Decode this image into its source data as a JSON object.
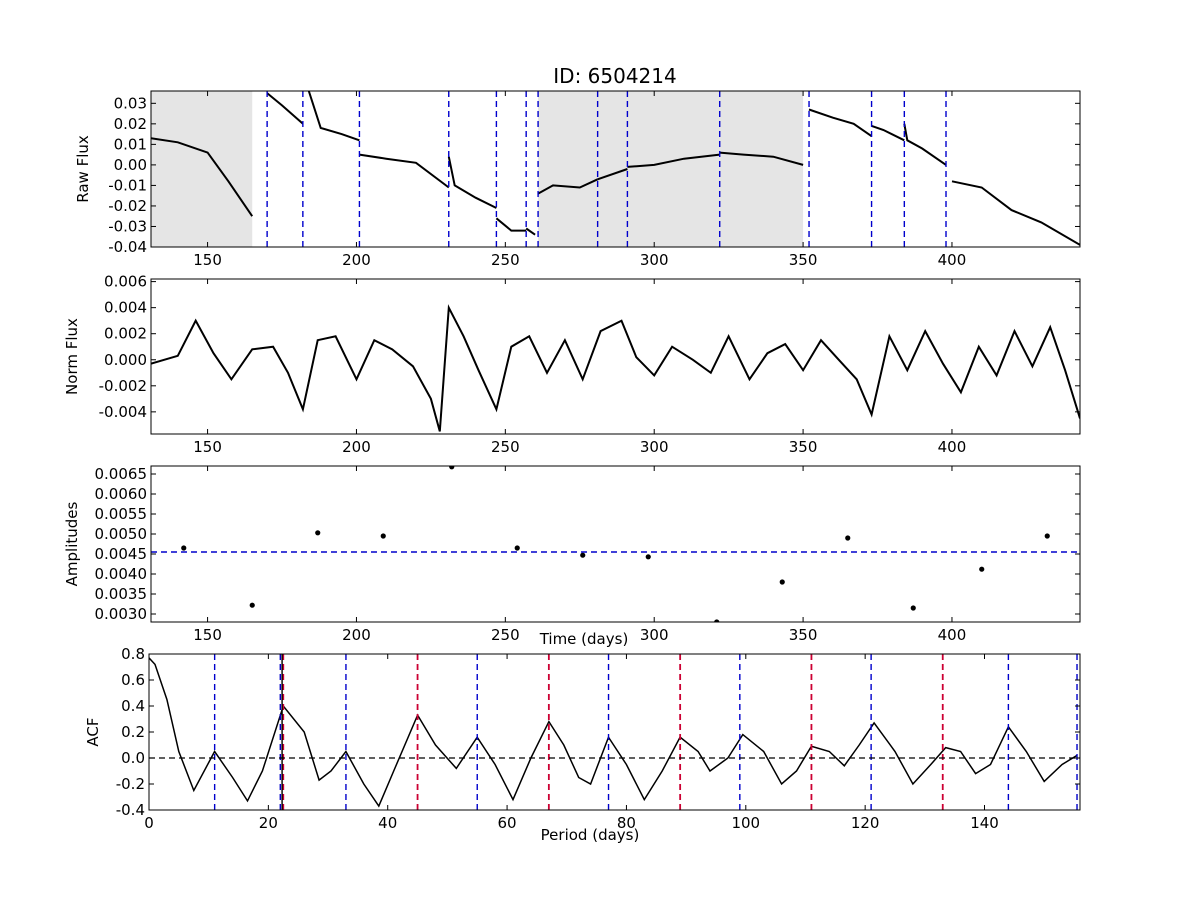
{
  "figure": {
    "title": "ID: 6504214"
  },
  "chart_data": [
    {
      "panel": "raw_flux",
      "type": "line",
      "ylabel": "Raw Flux",
      "xlim": [
        131,
        443
      ],
      "ylim": [
        -0.04,
        0.036
      ],
      "xticks": [
        150,
        200,
        250,
        300,
        350,
        400
      ],
      "xtick_labels": [
        "150",
        "200",
        "250",
        "300",
        "350",
        "400"
      ],
      "yticks": [
        0.03,
        0.02,
        0.01,
        0.0,
        -0.01,
        -0.02,
        -0.03,
        -0.04
      ],
      "ytick_labels": [
        "0.03",
        "0.02",
        "0.01",
        "0.00",
        "-0.01",
        "-0.02",
        "-0.03",
        "-0.04"
      ],
      "shaded_x_ranges": [
        [
          131,
          165
        ],
        [
          261,
          350
        ]
      ],
      "vlines_blue_dashed": [
        170,
        182,
        201,
        231,
        247,
        257,
        261,
        281,
        291,
        322,
        352,
        373,
        384,
        398
      ],
      "segments": [
        {
          "x": [
            131,
            140,
            150,
            157,
            165
          ],
          "y": [
            0.013,
            0.011,
            0.006,
            -0.008,
            -0.025
          ]
        },
        {
          "x": [
            170,
            175,
            182
          ],
          "y": [
            0.035,
            0.029,
            0.02
          ]
        },
        {
          "x": [
            184,
            188,
            195,
            201
          ],
          "y": [
            0.036,
            0.018,
            0.015,
            0.012
          ]
        },
        {
          "x": [
            201,
            210,
            220,
            231
          ],
          "y": [
            0.005,
            0.003,
            0.001,
            -0.011
          ]
        },
        {
          "x": [
            231,
            233,
            240,
            247
          ],
          "y": [
            0.004,
            -0.01,
            -0.016,
            -0.021
          ]
        },
        {
          "x": [
            247,
            252,
            257
          ],
          "y": [
            -0.026,
            -0.032,
            -0.032
          ]
        },
        {
          "x": [
            257,
            260
          ],
          "y": [
            -0.031,
            -0.034
          ]
        },
        {
          "x": [
            261,
            266,
            275,
            281
          ],
          "y": [
            -0.014,
            -0.01,
            -0.011,
            -0.007
          ]
        },
        {
          "x": [
            281,
            291
          ],
          "y": [
            -0.007,
            -0.002
          ]
        },
        {
          "x": [
            291,
            300,
            310,
            322
          ],
          "y": [
            -0.001,
            0.0,
            0.003,
            0.005
          ]
        },
        {
          "x": [
            322,
            330,
            340,
            350
          ],
          "y": [
            0.006,
            0.005,
            0.004,
            0.0
          ]
        },
        {
          "x": [
            352,
            360,
            367,
            373
          ],
          "y": [
            0.027,
            0.023,
            0.02,
            0.014
          ]
        },
        {
          "x": [
            373,
            377,
            384
          ],
          "y": [
            0.019,
            0.017,
            0.012
          ]
        },
        {
          "x": [
            384,
            385,
            390,
            398
          ],
          "y": [
            0.02,
            0.012,
            0.008,
            0.0
          ]
        },
        {
          "x": [
            400,
            410,
            420,
            430,
            443
          ],
          "y": [
            -0.008,
            -0.011,
            -0.022,
            -0.028,
            -0.039
          ]
        }
      ]
    },
    {
      "panel": "norm_flux",
      "type": "line",
      "ylabel": "Norm Flux",
      "xlim": [
        131,
        443
      ],
      "ylim": [
        -0.0057,
        0.0062
      ],
      "xticks": [
        150,
        200,
        250,
        300,
        350,
        400
      ],
      "xtick_labels": [
        "150",
        "200",
        "250",
        "300",
        "350",
        "400"
      ],
      "yticks": [
        0.006,
        0.004,
        0.002,
        0.0,
        -0.002,
        -0.004
      ],
      "ytick_labels": [
        "0.006",
        "0.004",
        "0.002",
        "0.000",
        "-0.002",
        "-0.004"
      ],
      "x": [
        131,
        140,
        146,
        152,
        158,
        165,
        172,
        177,
        182,
        187,
        193,
        200,
        206,
        212,
        219,
        225,
        228,
        231,
        236,
        241,
        247,
        252,
        258,
        264,
        270,
        276,
        282,
        289,
        294,
        300,
        306,
        313,
        319,
        325,
        332,
        338,
        344,
        350,
        356,
        362,
        368,
        373,
        379,
        385,
        391,
        397,
        403,
        409,
        415,
        421,
        427,
        433,
        438,
        443
      ],
      "y": [
        -0.0003,
        0.0003,
        0.003,
        0.0005,
        -0.0015,
        0.0008,
        0.001,
        -0.001,
        -0.0038,
        0.0015,
        0.0018,
        -0.0015,
        0.0015,
        0.0008,
        -0.0005,
        -0.003,
        -0.0055,
        0.004,
        0.0018,
        -0.0008,
        -0.0038,
        0.001,
        0.0018,
        -0.001,
        0.0015,
        -0.0015,
        0.0022,
        0.003,
        0.0002,
        -0.0012,
        0.001,
        0.0,
        -0.001,
        0.0018,
        -0.0015,
        0.0005,
        0.0012,
        -0.0008,
        0.0015,
        0.0,
        -0.0015,
        -0.0042,
        0.0018,
        -0.0008,
        0.0022,
        -0.0003,
        -0.0025,
        0.001,
        -0.0012,
        0.0022,
        -0.0005,
        0.0025,
        -0.0008,
        -0.0045
      ]
    },
    {
      "panel": "amplitudes",
      "type": "scatter",
      "ylabel": "Amplitudes",
      "xlabel": "Time (days)",
      "xlim": [
        131,
        443
      ],
      "ylim": [
        0.0028,
        0.0067
      ],
      "xticks": [
        150,
        200,
        250,
        300,
        350,
        400
      ],
      "xtick_labels": [
        "150",
        "200",
        "250",
        "300",
        "350",
        "400"
      ],
      "yticks": [
        0.0065,
        0.006,
        0.0055,
        0.005,
        0.0045,
        0.004,
        0.0035,
        0.003
      ],
      "ytick_labels": [
        "0.0065",
        "0.0060",
        "0.0055",
        "0.0050",
        "0.0045",
        "0.0040",
        "0.0035",
        "0.0030"
      ],
      "hline_blue_dashed": 0.00455,
      "x": [
        142,
        165,
        187,
        209,
        232,
        254,
        276,
        298,
        321,
        343,
        365,
        387,
        410,
        432
      ],
      "y": [
        0.00465,
        0.00322,
        0.00503,
        0.00495,
        0.00668,
        0.00465,
        0.00447,
        0.00443,
        0.0028,
        0.0038,
        0.0049,
        0.00315,
        0.00412,
        0.00495
      ]
    },
    {
      "panel": "acf",
      "type": "line",
      "ylabel": "ACF",
      "xlabel": "Period (days)",
      "xlim": [
        0,
        156
      ],
      "ylim": [
        -0.4,
        0.8
      ],
      "xticks": [
        0,
        20,
        40,
        60,
        80,
        100,
        120,
        140
      ],
      "xtick_labels": [
        "0",
        "20",
        "40",
        "60",
        "80",
        "100",
        "120",
        "140"
      ],
      "yticks": [
        0.8,
        0.6,
        0.4,
        0.2,
        0.0,
        -0.2,
        -0.4
      ],
      "ytick_labels": [
        "0.8",
        "0.6",
        "0.4",
        "0.2",
        "0.0",
        "-0.2",
        "-0.4"
      ],
      "hline_black_dashed": 0.0,
      "vlines_blue_dashed": [
        11,
        22,
        33,
        55,
        77,
        99,
        121,
        144,
        155.5
      ],
      "vlines_red_dashed": [
        22.5,
        45,
        67,
        89,
        111,
        133
      ],
      "vline_black_solid": 22.3,
      "x": [
        0,
        1,
        3,
        5,
        7.5,
        11,
        14,
        16.5,
        19,
        22.5,
        26,
        28.5,
        30.5,
        33,
        36,
        38.5,
        41,
        45,
        48,
        51.5,
        55,
        58,
        61,
        64,
        67,
        69.5,
        72,
        74,
        77,
        80,
        83,
        86,
        89,
        92,
        94,
        97,
        99.5,
        103,
        106,
        108.5,
        111,
        114,
        116.5,
        119,
        121.5,
        125,
        128,
        131,
        133.5,
        136,
        138.5,
        141,
        144,
        147,
        150,
        153,
        155.5
      ],
      "y": [
        0.77,
        0.72,
        0.45,
        0.05,
        -0.25,
        0.05,
        -0.15,
        -0.33,
        -0.1,
        0.4,
        0.2,
        -0.17,
        -0.1,
        0.05,
        -0.2,
        -0.37,
        -0.1,
        0.33,
        0.1,
        -0.08,
        0.16,
        -0.05,
        -0.32,
        0.0,
        0.28,
        0.1,
        -0.15,
        -0.2,
        0.16,
        -0.05,
        -0.32,
        -0.1,
        0.16,
        0.05,
        -0.1,
        0.0,
        0.18,
        0.05,
        -0.2,
        -0.1,
        0.09,
        0.05,
        -0.06,
        0.1,
        0.27,
        0.05,
        -0.2,
        -0.05,
        0.08,
        0.05,
        -0.12,
        -0.05,
        0.24,
        0.05,
        -0.18,
        -0.05,
        0.02
      ]
    }
  ]
}
